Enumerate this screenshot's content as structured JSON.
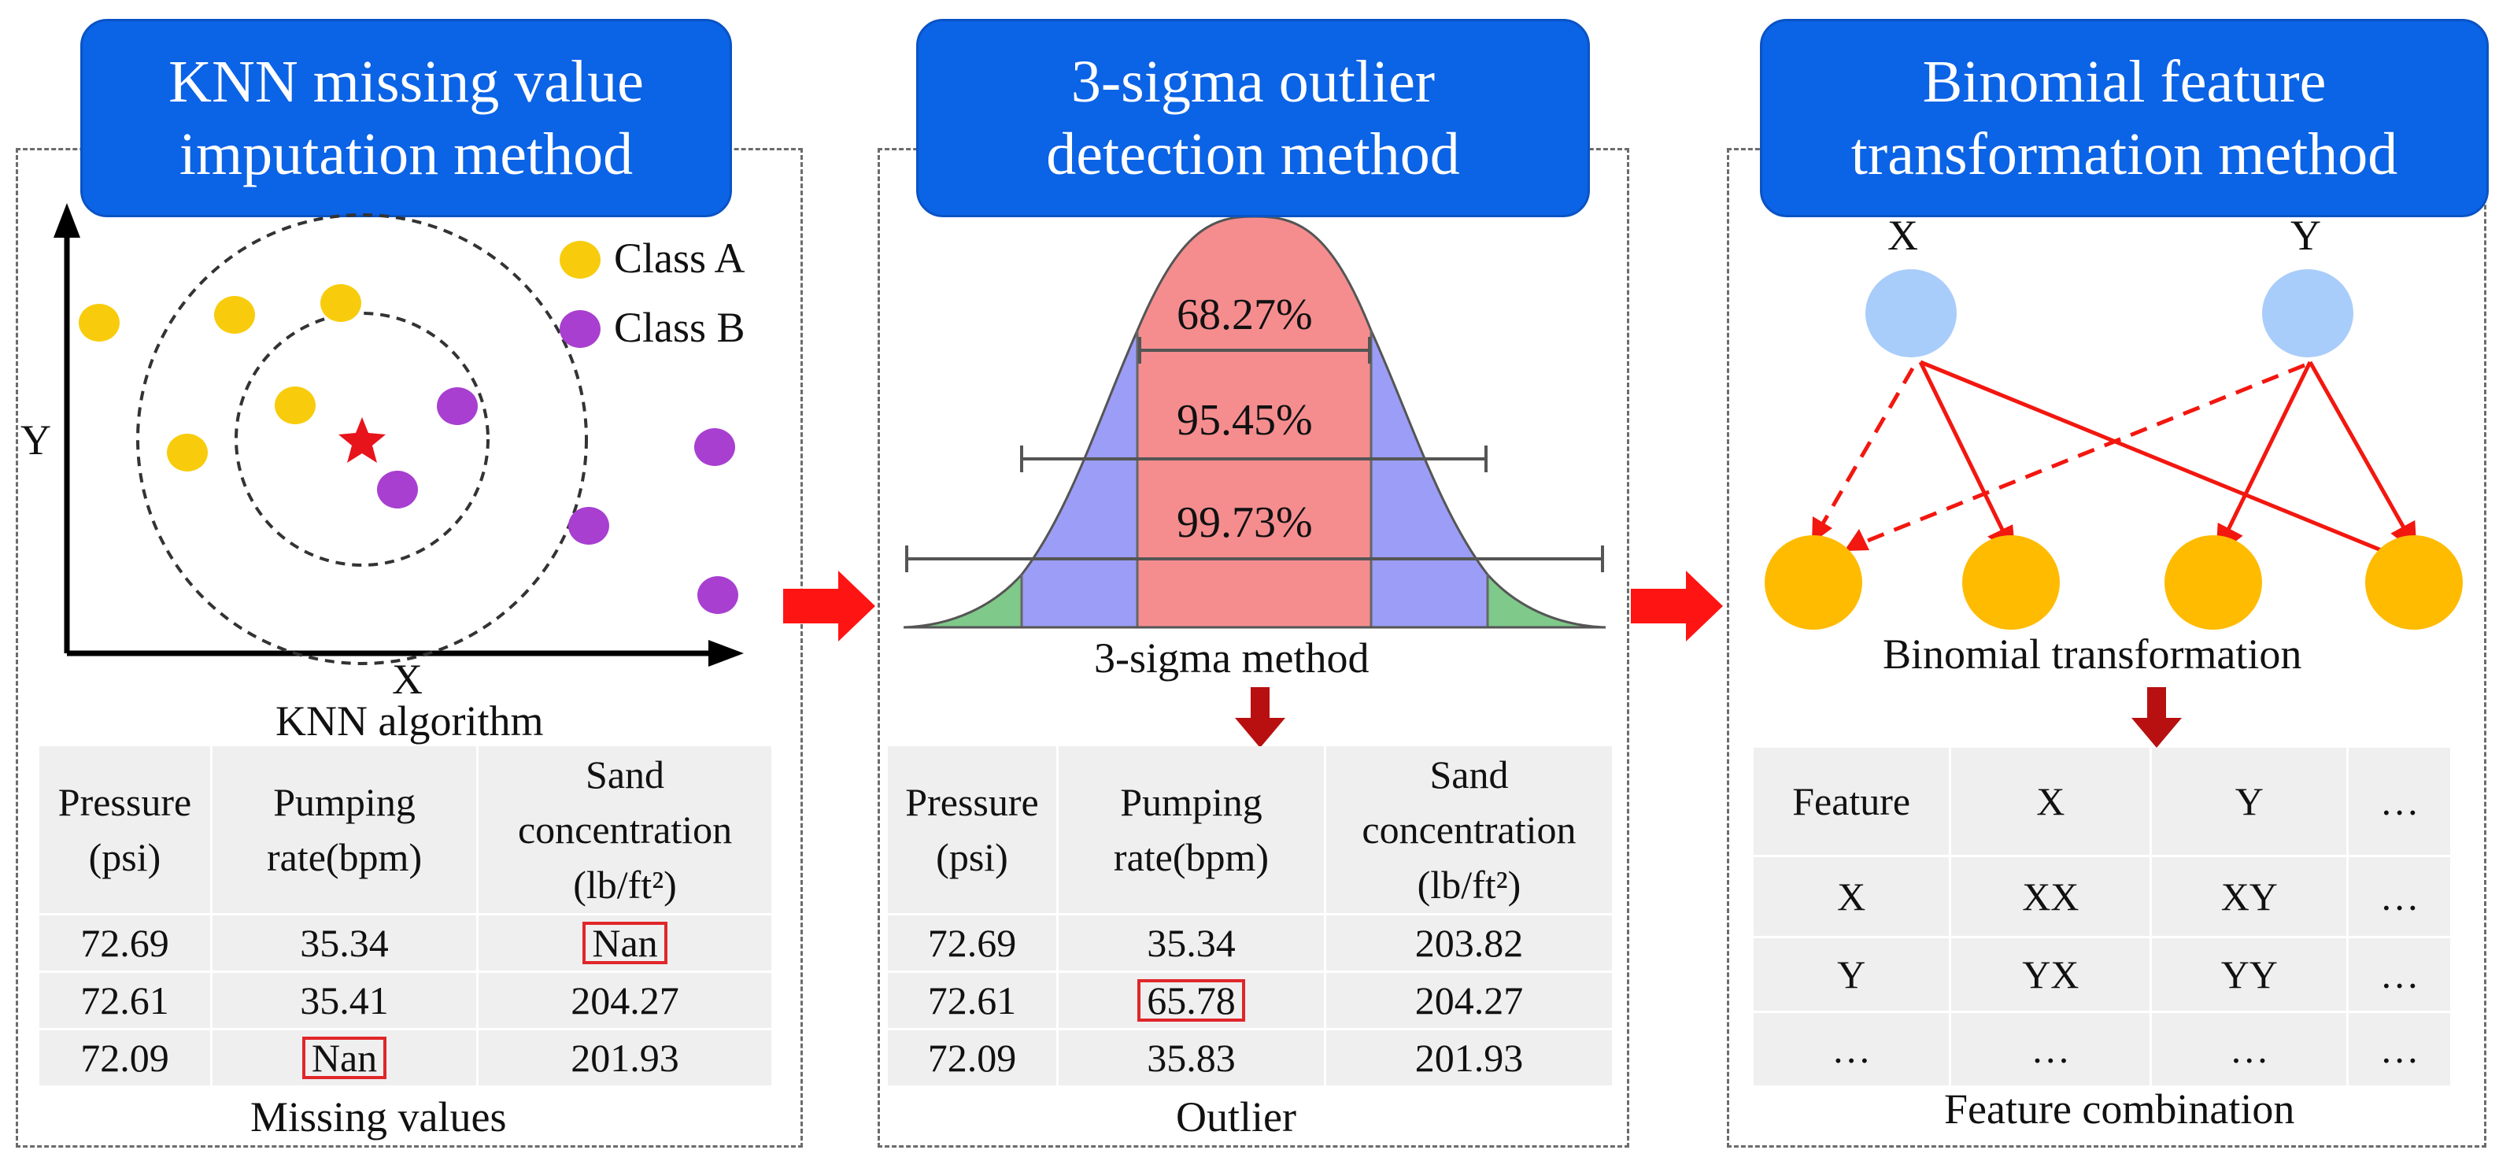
{
  "panels": {
    "knn": {
      "title_line1": "KNN missing value",
      "title_line2": "imputation method",
      "axis_x": "X",
      "axis_y": "Y",
      "legend_a": "Class A",
      "legend_b": "Class B",
      "algo_caption": "KNN algorithm",
      "table": {
        "headers": [
          "Pressure\n(psi)",
          "Pumping\nrate(bpm)",
          "Sand\nconcentration\n(lb/ft²)"
        ],
        "rows": [
          [
            "72.69",
            "35.34",
            "Nan"
          ],
          [
            "72.61",
            "35.41",
            "204.27"
          ],
          [
            "72.09",
            "Nan",
            "201.93"
          ]
        ]
      },
      "footer": "Missing values"
    },
    "sigma": {
      "title_line1": "3-sigma outlier",
      "title_line2": "detection method",
      "pct1": "68.27%",
      "pct2": "95.45%",
      "pct3": "99.73%",
      "method_caption": "3-sigma method",
      "table": {
        "headers": [
          "Pressure\n(psi)",
          "Pumping\nrate(bpm)",
          "Sand\nconcentration\n(lb/ft²)"
        ],
        "rows": [
          [
            "72.69",
            "35.34",
            "203.82"
          ],
          [
            "72.61",
            "65.78",
            "204.27"
          ],
          [
            "72.09",
            "35.83",
            "201.93"
          ]
        ]
      },
      "footer": "Outlier"
    },
    "binomial": {
      "title_line1": "Binomial feature",
      "title_line2": "transformation method",
      "node_x": "X",
      "node_y": "Y",
      "method_caption": "Binomial transformation",
      "table": {
        "headers": [
          "Feature",
          "X",
          "Y",
          "…"
        ],
        "rows": [
          [
            "X",
            "XX",
            "XY",
            "…"
          ],
          [
            "Y",
            "YX",
            "YY",
            "…"
          ],
          [
            "…",
            "…",
            "…",
            "…"
          ]
        ]
      },
      "footer": "Feature combination"
    }
  },
  "colors": {
    "title_bg": "#0b63e6",
    "class_a": "#f8cc0c",
    "class_b": "#a83fd0",
    "star": "#e8141b",
    "bell_center": "#f58d8f",
    "bell_mid": "#9b9df7",
    "bell_tail": "#7fc98a",
    "node_in": "#a9cdfa",
    "node_out": "#ffbb00",
    "arrow": "#f2170f",
    "down_arrow": "#b81010"
  }
}
